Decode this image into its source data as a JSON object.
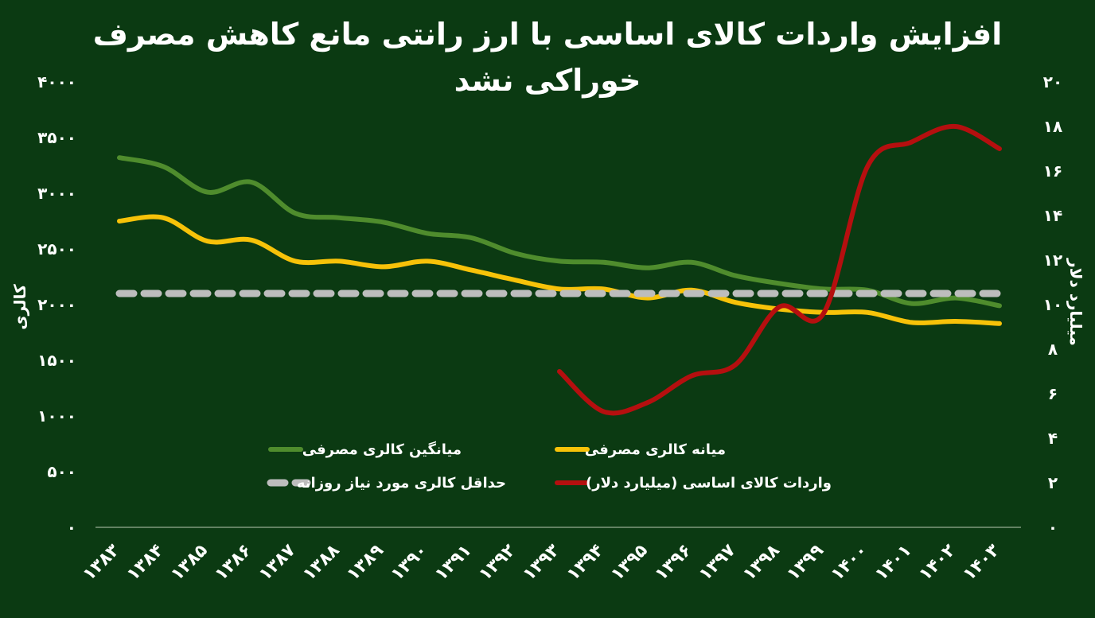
{
  "chart_data": {
    "type": "line",
    "title_line1": "افزایش واردات کالای اساسی با ارز رانتی مانع کاهش مصرف",
    "title_line2": "خوراکی نشد",
    "ylabel_left": "کالری",
    "ylabel_right": "میلیارد دلار",
    "categories": [
      "۱۳۸۳",
      "۱۳۸۴",
      "۱۳۸۵",
      "۱۳۸۶",
      "۱۳۸۷",
      "۱۳۸۸",
      "۱۳۸۹",
      "۱۳۹۰",
      "۱۳۹۱",
      "۱۳۹۲",
      "۱۳۹۳",
      "۱۳۹۴",
      "۱۳۹۵",
      "۱۳۹۶",
      "۱۳۹۷",
      "۱۳۹۸",
      "۱۳۹۹",
      "۱۴۰۰",
      "۱۴۰۱",
      "۱۴۰۲",
      "۱۴۰۳"
    ],
    "y_left": {
      "min": 0,
      "max": 4000,
      "ticks": [
        "۰",
        "۵۰۰",
        "۱۰۰۰",
        "۱۵۰۰",
        "۲۰۰۰",
        "۲۵۰۰",
        "۳۰۰۰",
        "۳۵۰۰",
        "۴۰۰۰"
      ]
    },
    "y_right": {
      "min": 0,
      "max": 20,
      "ticks": [
        "۰",
        "۲",
        "۴",
        "۶",
        "۸",
        "۱۰",
        "۱۲",
        "۱۴",
        "۱۶",
        "۱۸",
        "۲۰"
      ]
    },
    "series": [
      {
        "name": "میانگین کالری مصرفی",
        "axis": "left",
        "color": "#4f8c2d",
        "style": "solid",
        "values": [
          3320,
          3240,
          3010,
          3100,
          2820,
          2780,
          2740,
          2640,
          2600,
          2460,
          2390,
          2380,
          2330,
          2380,
          2260,
          2190,
          2140,
          2130,
          2010,
          2060,
          1990
        ]
      },
      {
        "name": "میانه کالری مصرفی",
        "axis": "left",
        "color": "#f7c209",
        "style": "solid",
        "values": [
          2750,
          2780,
          2570,
          2580,
          2390,
          2390,
          2340,
          2390,
          2310,
          2220,
          2140,
          2140,
          2060,
          2130,
          2020,
          1960,
          1930,
          1930,
          1840,
          1850,
          1830
        ]
      },
      {
        "name": "حداقل کالری مورد نیاز روزانه",
        "axis": "left",
        "color": "#bdbdbd",
        "style": "dashed",
        "values": [
          2100,
          2100,
          2100,
          2100,
          2100,
          2100,
          2100,
          2100,
          2100,
          2100,
          2100,
          2100,
          2100,
          2100,
          2100,
          2100,
          2100,
          2100,
          2100,
          2100,
          2100
        ]
      },
      {
        "name": "واردات کالای اساسی (میلیارد دلار)",
        "axis": "right",
        "color": "#b50f0f",
        "style": "solid",
        "values": [
          null,
          null,
          null,
          null,
          null,
          null,
          null,
          null,
          null,
          null,
          7.0,
          5.2,
          5.6,
          6.8,
          7.3,
          9.9,
          9.6,
          16.2,
          17.3,
          18.0,
          17.0
        ]
      }
    ],
    "grid": false,
    "legend_position": "bottom-center"
  }
}
